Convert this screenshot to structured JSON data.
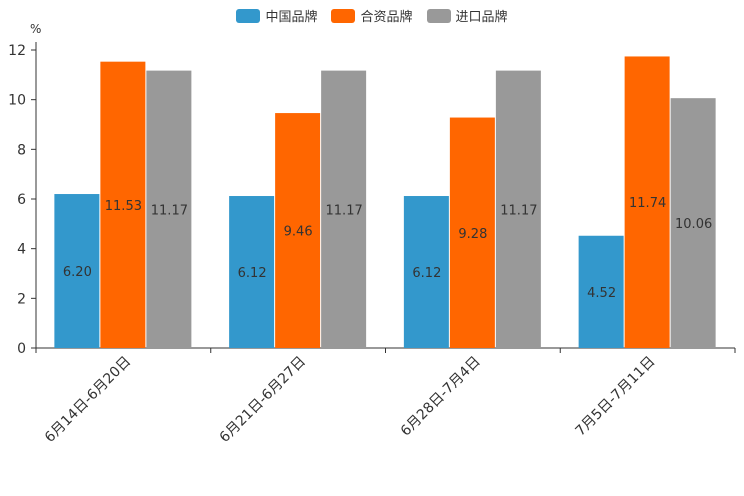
{
  "chart_data": {
    "type": "bar",
    "unit": "%",
    "categories": [
      "6月14日-6月20日",
      "6月21日-6月27日",
      "6月28日-7月4日",
      "7月5日-7月11日"
    ],
    "series": [
      {
        "name": "中国品牌",
        "color": "#3398cc",
        "values": [
          6.2,
          6.12,
          6.12,
          4.52
        ],
        "labels": [
          "6.20",
          "6.12",
          "6.12",
          "4.52"
        ]
      },
      {
        "name": "合资品牌",
        "color": "#ff6600",
        "values": [
          11.53,
          9.46,
          9.28,
          11.74
        ],
        "labels": [
          "11.53",
          "9.46",
          "9.28",
          "11.74"
        ]
      },
      {
        "name": "进口品牌",
        "color": "#999999",
        "values": [
          11.17,
          11.17,
          11.17,
          10.06
        ],
        "labels": [
          "11.17",
          "11.17",
          "11.17",
          "10.06"
        ]
      }
    ],
    "ylim": [
      0,
      12
    ],
    "yticks": [
      0,
      2,
      4,
      6,
      8,
      10,
      12
    ],
    "legend_position": "top-center",
    "grid": false
  }
}
